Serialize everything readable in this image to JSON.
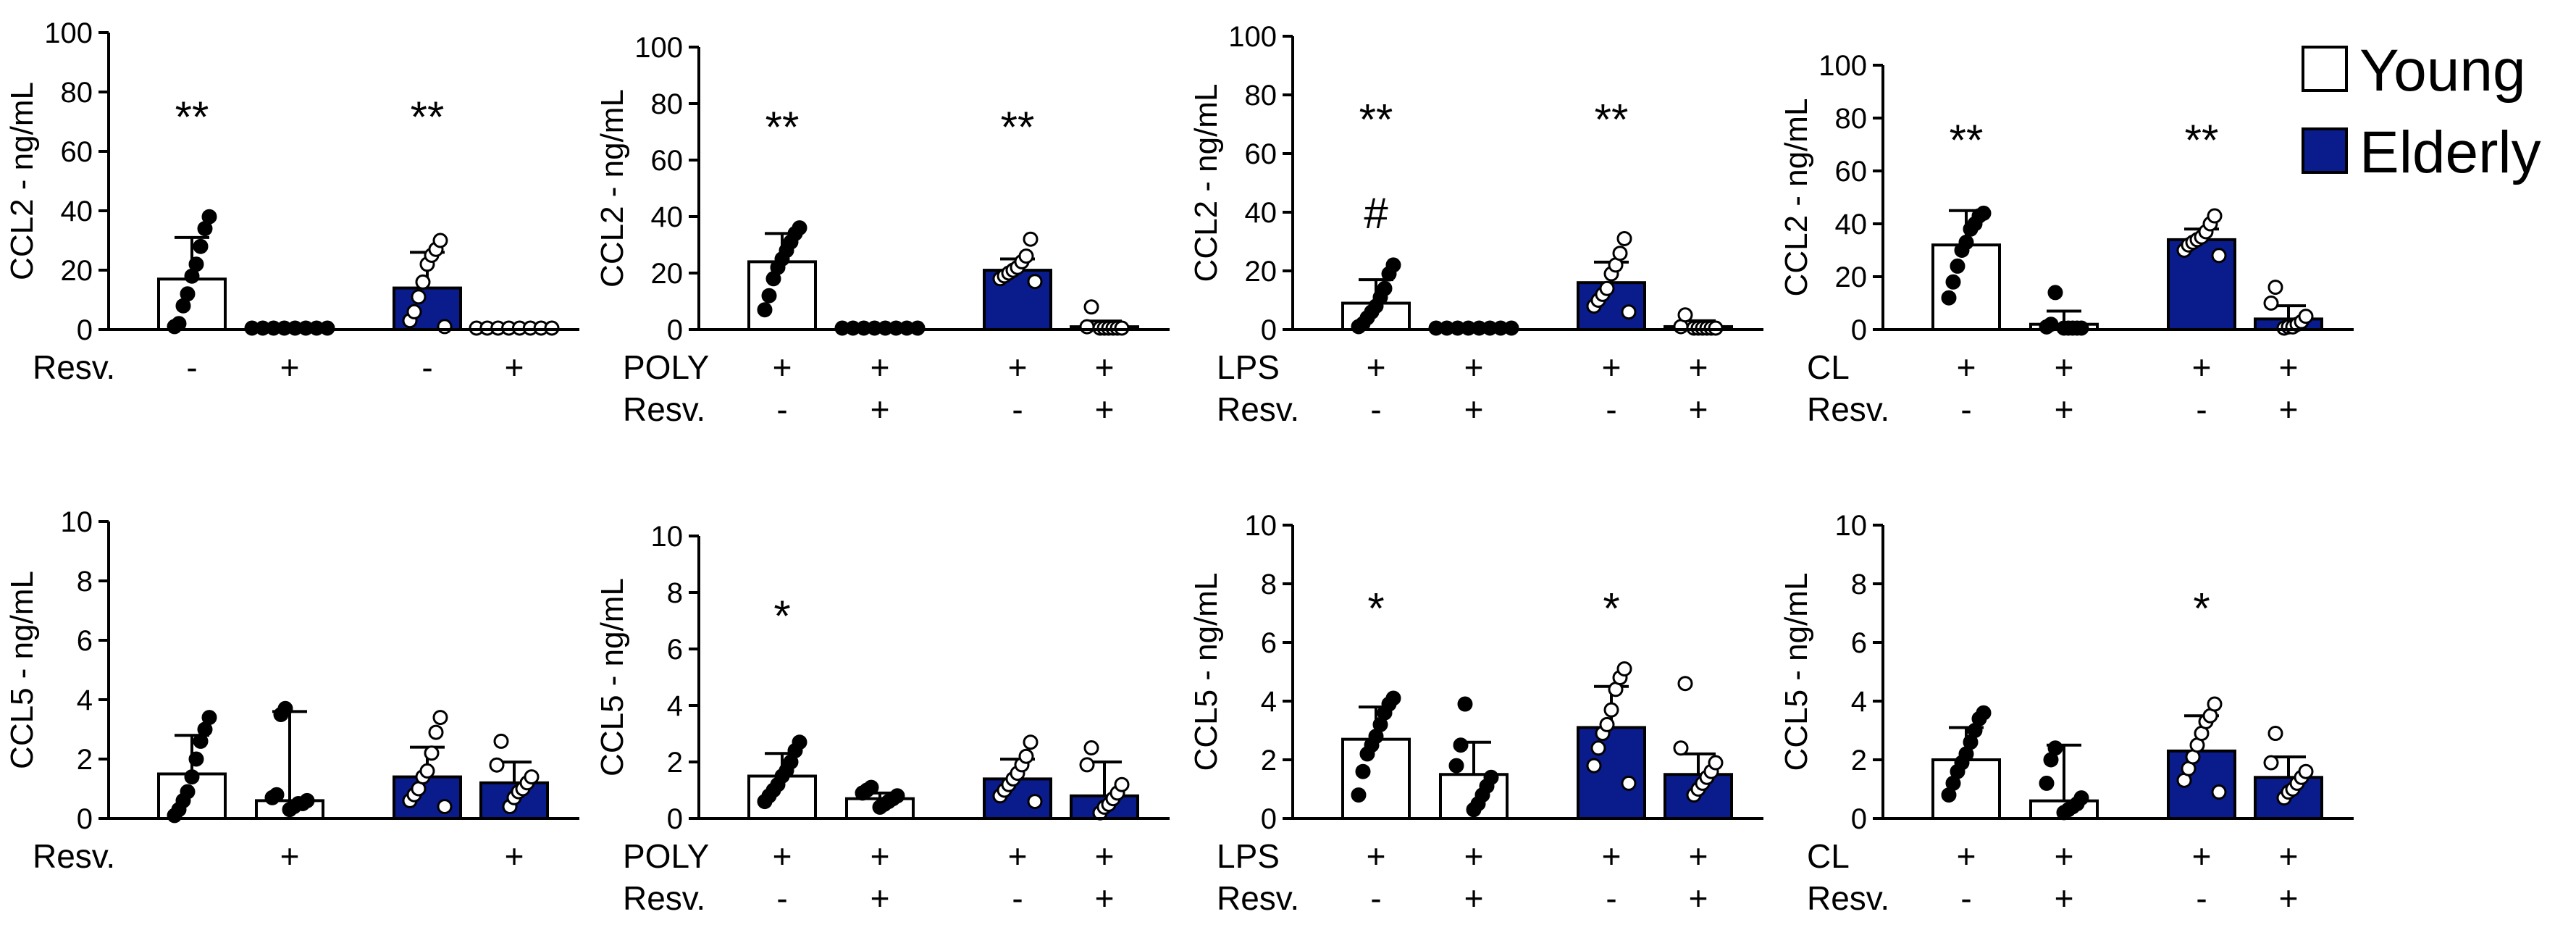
{
  "colors": {
    "young": "#ffffff",
    "elderly": "#0a1c8c",
    "stroke": "#000000"
  },
  "legend": {
    "items": [
      {
        "label": "Young",
        "color": "#ffffff"
      },
      {
        "label": "Elderly",
        "color": "#0a1c8c"
      }
    ]
  },
  "chart_data": [
    {
      "type": "bar",
      "ylabel": "CCL2 - ng/mL",
      "ylim": [
        0,
        100
      ],
      "yticks": [
        0,
        20,
        40,
        60,
        80,
        100
      ],
      "rows": [
        {
          "label": "Resv.",
          "values": [
            "-",
            "+",
            "-",
            "+"
          ]
        }
      ],
      "bars": [
        {
          "group": "Young",
          "mean": 17,
          "sd": 14,
          "sig": "**",
          "points": [
            1,
            2,
            8,
            12,
            18,
            22,
            28,
            34,
            38
          ]
        },
        {
          "group": "Young",
          "mean": 0,
          "sd": 0,
          "sig": "",
          "points": [
            0,
            0,
            0,
            0,
            0,
            0,
            0,
            0
          ]
        },
        {
          "group": "Elderly",
          "mean": 14,
          "sd": 12,
          "sig": "**",
          "points": [
            1,
            3,
            6,
            11,
            16,
            22,
            25,
            27,
            30
          ]
        },
        {
          "group": "Elderly",
          "mean": 0,
          "sd": 0,
          "sig": "",
          "points": [
            0,
            0,
            0,
            0,
            0,
            0,
            0,
            0
          ]
        }
      ]
    },
    {
      "type": "bar",
      "ylabel": "CCL2 - ng/mL",
      "ylim": [
        0,
        100
      ],
      "yticks": [
        0,
        20,
        40,
        60,
        80,
        100
      ],
      "rows": [
        {
          "label": "POLY",
          "values": [
            "+",
            "+",
            "+",
            "+"
          ]
        },
        {
          "label": "Resv.",
          "values": [
            "-",
            "+",
            "-",
            "+"
          ]
        }
      ],
      "bars": [
        {
          "group": "Young",
          "mean": 24,
          "sd": 10,
          "sig": "**",
          "points": [
            7,
            12,
            18,
            22,
            25,
            28,
            31,
            34,
            36
          ]
        },
        {
          "group": "Young",
          "mean": 0,
          "sd": 0,
          "sig": "",
          "points": [
            0,
            0,
            0,
            0,
            0,
            0,
            0,
            0
          ]
        },
        {
          "group": "Elderly",
          "mean": 21,
          "sd": 4,
          "sig": "**",
          "points": [
            17,
            18,
            19,
            20,
            21,
            22,
            24,
            26,
            32
          ]
        },
        {
          "group": "Elderly",
          "mean": 1,
          "sd": 2,
          "sig": "",
          "points": [
            0,
            0,
            0,
            0,
            0,
            0,
            1,
            8
          ]
        }
      ]
    },
    {
      "type": "bar",
      "ylabel": "CCL2 - ng/mL",
      "ylim": [
        0,
        100
      ],
      "yticks": [
        0,
        20,
        40,
        60,
        80,
        100
      ],
      "rows": [
        {
          "label": "LPS",
          "values": [
            "+",
            "+",
            "+",
            "+"
          ]
        },
        {
          "label": "Resv.",
          "values": [
            "-",
            "+",
            "-",
            "+"
          ]
        }
      ],
      "bars": [
        {
          "group": "Young",
          "mean": 9,
          "sd": 8,
          "sig": "**",
          "sig2": "#",
          "points": [
            1,
            2,
            4,
            6,
            8,
            11,
            14,
            19,
            22
          ]
        },
        {
          "group": "Young",
          "mean": 0,
          "sd": 0,
          "sig": "",
          "points": [
            0,
            0,
            0,
            0,
            0,
            0,
            0,
            0
          ]
        },
        {
          "group": "Elderly",
          "mean": 16,
          "sd": 7,
          "sig": "**",
          "points": [
            6,
            8,
            10,
            12,
            14,
            19,
            22,
            26,
            31
          ]
        },
        {
          "group": "Elderly",
          "mean": 1,
          "sd": 2,
          "sig": "",
          "points": [
            0,
            0,
            0,
            0,
            0,
            0,
            1,
            5
          ]
        }
      ]
    },
    {
      "type": "bar",
      "ylabel": "CCL2 - ng/mL",
      "ylim": [
        0,
        100
      ],
      "yticks": [
        0,
        20,
        40,
        60,
        80,
        100
      ],
      "rows": [
        {
          "label": "CL",
          "values": [
            "+",
            "+",
            "+",
            "+"
          ]
        },
        {
          "label": "Resv.",
          "values": [
            "-",
            "+",
            "-",
            "+"
          ]
        }
      ],
      "bars": [
        {
          "group": "Young",
          "mean": 32,
          "sd": 13,
          "sig": "**",
          "points": [
            12,
            18,
            24,
            30,
            33,
            38,
            40,
            43,
            44
          ]
        },
        {
          "group": "Young",
          "mean": 2,
          "sd": 5,
          "sig": "",
          "points": [
            0,
            0,
            0,
            0,
            0,
            1,
            2,
            14
          ]
        },
        {
          "group": "Elderly",
          "mean": 34,
          "sd": 4,
          "sig": "**",
          "points": [
            28,
            30,
            32,
            33,
            34,
            35,
            37,
            40,
            43
          ]
        },
        {
          "group": "Elderly",
          "mean": 4,
          "sd": 5,
          "sig": "",
          "points": [
            0,
            1,
            1,
            2,
            3,
            5,
            10,
            16
          ]
        }
      ]
    },
    {
      "type": "bar",
      "ylabel": "CCL5 - ng/mL",
      "ylim": [
        0,
        10
      ],
      "yticks": [
        0,
        2,
        4,
        6,
        8,
        10
      ],
      "rows": [
        {
          "label": "Resv.",
          "values": [
            "",
            "+",
            "",
            "+"
          ]
        }
      ],
      "bars": [
        {
          "group": "Young",
          "mean": 1.5,
          "sd": 1.3,
          "sig": "",
          "points": [
            0.1,
            0.3,
            0.6,
            0.9,
            1.4,
            2.0,
            2.6,
            3.0,
            3.4
          ]
        },
        {
          "group": "Young",
          "mean": 0.6,
          "sd": 3.0,
          "sig": "",
          "points": [
            0.3,
            0.4,
            0.5,
            0.5,
            0.6,
            0.7,
            0.8,
            3.5,
            3.7
          ]
        },
        {
          "group": "Elderly",
          "mean": 1.4,
          "sd": 1.0,
          "sig": "",
          "points": [
            0.4,
            0.6,
            0.8,
            1.0,
            1.4,
            1.6,
            2.2,
            2.9,
            3.4
          ]
        },
        {
          "group": "Elderly",
          "mean": 1.2,
          "sd": 0.7,
          "sig": "",
          "points": [
            0.4,
            0.7,
            0.9,
            1.0,
            1.2,
            1.4,
            1.8,
            2.6
          ]
        }
      ]
    },
    {
      "type": "bar",
      "ylabel": "CCL5 - ng/mL",
      "ylim": [
        0,
        10
      ],
      "yticks": [
        0,
        2,
        4,
        6,
        8,
        10
      ],
      "rows": [
        {
          "label": "POLY",
          "values": [
            "+",
            "+",
            "+",
            "+"
          ]
        },
        {
          "label": "Resv.",
          "values": [
            "-",
            "+",
            "-",
            "+"
          ]
        }
      ],
      "bars": [
        {
          "group": "Young",
          "mean": 1.5,
          "sd": 0.8,
          "sig": "*",
          "points": [
            0.6,
            0.8,
            1.0,
            1.2,
            1.5,
            1.7,
            2.0,
            2.4,
            2.7
          ]
        },
        {
          "group": "Young",
          "mean": 0.7,
          "sd": 0.2,
          "sig": "",
          "points": [
            0.4,
            0.5,
            0.6,
            0.7,
            0.8,
            0.9,
            1.0,
            1.1
          ]
        },
        {
          "group": "Elderly",
          "mean": 1.4,
          "sd": 0.7,
          "sig": "",
          "points": [
            0.6,
            0.8,
            1.0,
            1.2,
            1.4,
            1.6,
            1.9,
            2.2,
            2.7
          ]
        },
        {
          "group": "Elderly",
          "mean": 0.8,
          "sd": 1.2,
          "sig": "",
          "points": [
            0.2,
            0.4,
            0.5,
            0.7,
            0.9,
            1.2,
            1.9,
            2.5
          ]
        }
      ]
    },
    {
      "type": "bar",
      "ylabel": "CCL5 - ng/mL",
      "ylim": [
        0,
        10
      ],
      "yticks": [
        0,
        2,
        4,
        6,
        8,
        10
      ],
      "rows": [
        {
          "label": "LPS",
          "values": [
            "+",
            "+",
            "+",
            "+"
          ]
        },
        {
          "label": "Resv.",
          "values": [
            "-",
            "+",
            "-",
            "+"
          ]
        }
      ],
      "bars": [
        {
          "group": "Young",
          "mean": 2.7,
          "sd": 1.1,
          "sig": "*",
          "points": [
            0.8,
            1.6,
            2.2,
            2.5,
            2.8,
            3.2,
            3.6,
            3.9,
            4.1
          ]
        },
        {
          "group": "Young",
          "mean": 1.5,
          "sd": 1.1,
          "sig": "",
          "points": [
            0.3,
            0.5,
            0.8,
            1.1,
            1.4,
            1.8,
            2.5,
            3.9
          ]
        },
        {
          "group": "Elderly",
          "mean": 3.1,
          "sd": 1.4,
          "sig": "*",
          "points": [
            1.2,
            1.8,
            2.4,
            2.9,
            3.2,
            3.7,
            4.4,
            4.8,
            5.1
          ]
        },
        {
          "group": "Elderly",
          "mean": 1.5,
          "sd": 0.7,
          "sig": "",
          "points": [
            0.8,
            1.0,
            1.2,
            1.4,
            1.6,
            1.9,
            2.4,
            4.6
          ]
        }
      ]
    },
    {
      "type": "bar",
      "ylabel": "CCL5 - ng/mL",
      "ylim": [
        0,
        10
      ],
      "yticks": [
        0,
        2,
        4,
        6,
        8,
        10
      ],
      "rows": [
        {
          "label": "CL",
          "values": [
            "+",
            "+",
            "+",
            "+"
          ]
        },
        {
          "label": "Resv.",
          "values": [
            "-",
            "+",
            "-",
            "+"
          ]
        }
      ],
      "bars": [
        {
          "group": "Young",
          "mean": 2.0,
          "sd": 1.1,
          "sig": "",
          "points": [
            0.8,
            1.2,
            1.6,
            1.9,
            2.2,
            2.6,
            3.0,
            3.4,
            3.6
          ]
        },
        {
          "group": "Young",
          "mean": 0.6,
          "sd": 1.9,
          "sig": "",
          "points": [
            0.2,
            0.3,
            0.4,
            0.5,
            0.7,
            1.2,
            2.0,
            2.4
          ]
        },
        {
          "group": "Elderly",
          "mean": 2.3,
          "sd": 1.2,
          "sig": "*",
          "points": [
            0.9,
            1.3,
            1.7,
            2.1,
            2.5,
            2.9,
            3.3,
            3.5,
            3.9
          ]
        },
        {
          "group": "Elderly",
          "mean": 1.4,
          "sd": 0.7,
          "sig": "",
          "points": [
            0.7,
            0.9,
            1.0,
            1.2,
            1.4,
            1.6,
            1.9,
            2.9
          ]
        }
      ]
    }
  ]
}
